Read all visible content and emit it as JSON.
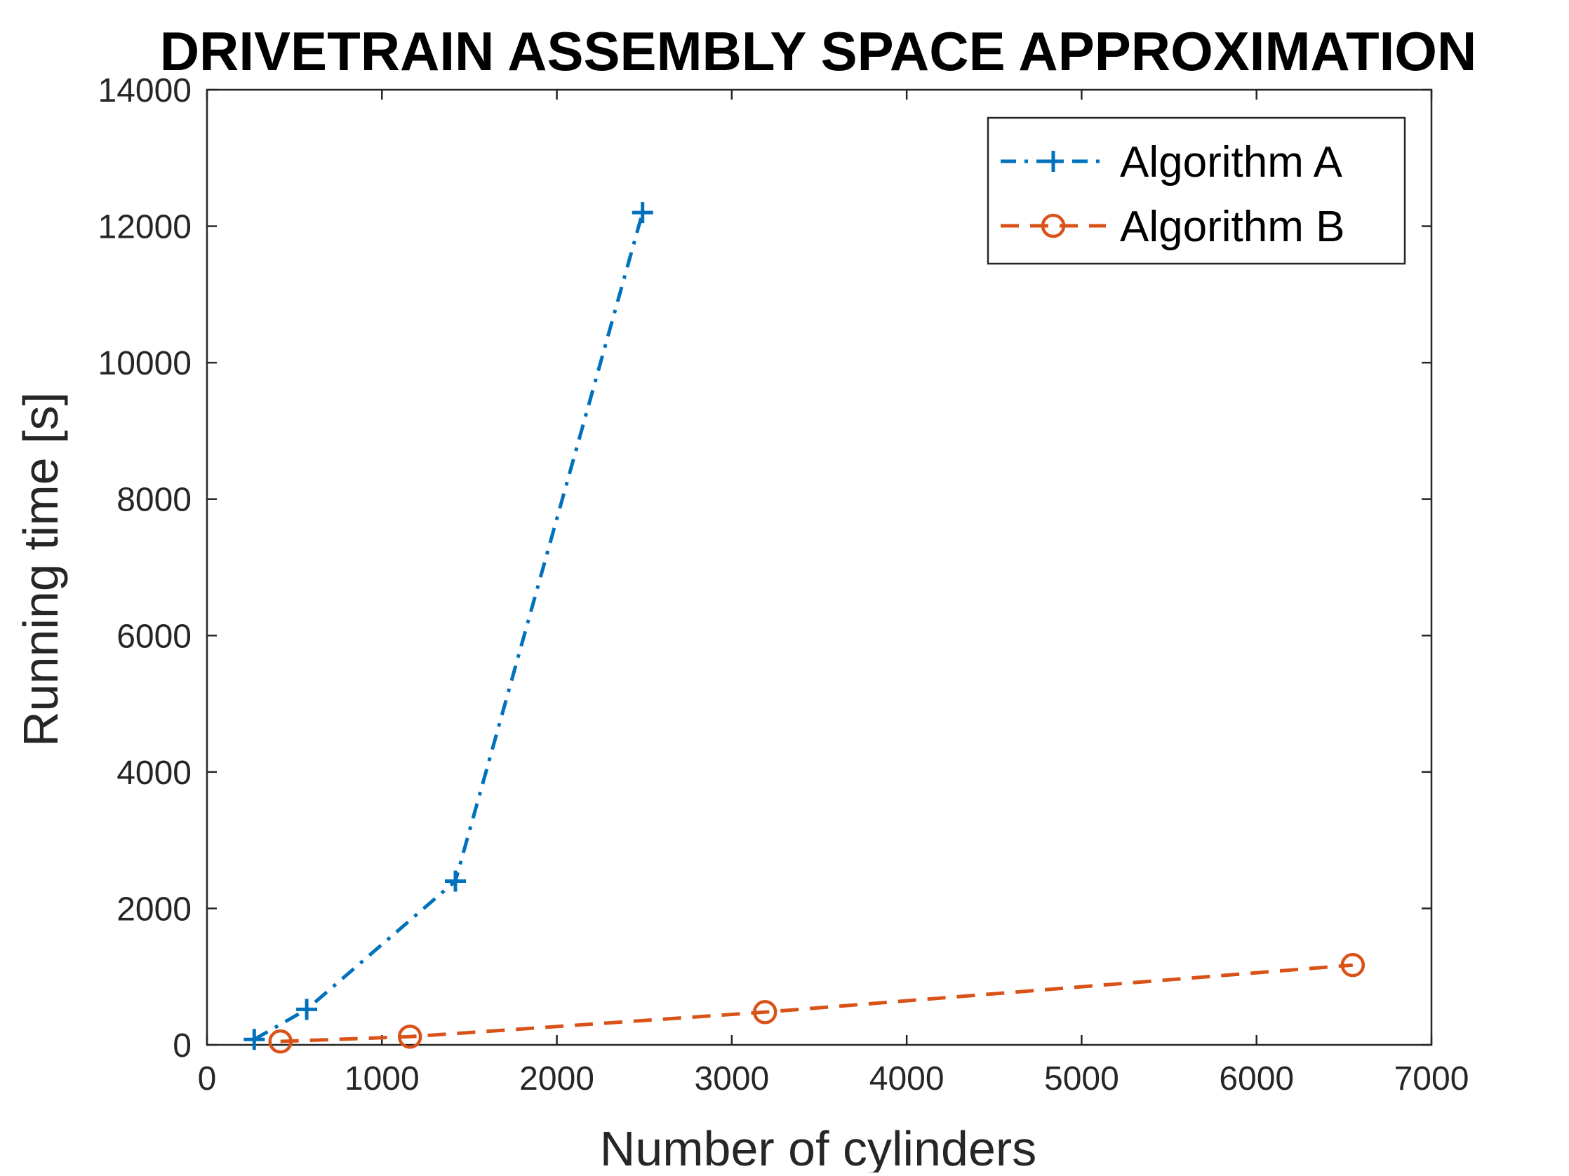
{
  "chart_data": {
    "type": "line",
    "title": "DRIVETRAIN ASSEMBLY SPACE APPROXIMATION",
    "xlabel": "Number of cylinders",
    "ylabel": "Running time [s]",
    "xlim": [
      0,
      7000
    ],
    "ylim": [
      0,
      14000
    ],
    "xticks": [
      0,
      1000,
      2000,
      3000,
      4000,
      5000,
      6000,
      7000
    ],
    "yticks": [
      0,
      2000,
      4000,
      6000,
      8000,
      10000,
      12000,
      14000
    ],
    "grid": false,
    "legend_position": "top-right",
    "series": [
      {
        "name": "Algorithm A",
        "color": "#0072BD",
        "line_style": "dash-dot",
        "marker": "plus",
        "x": [
          270,
          570,
          1420,
          2490
        ],
        "y": [
          80,
          520,
          2400,
          12200
        ]
      },
      {
        "name": "Algorithm B",
        "color": "#D95319",
        "line_style": "dashed",
        "marker": "circle",
        "x": [
          420,
          1160,
          3190,
          6550
        ],
        "y": [
          50,
          120,
          480,
          1170
        ]
      }
    ]
  }
}
